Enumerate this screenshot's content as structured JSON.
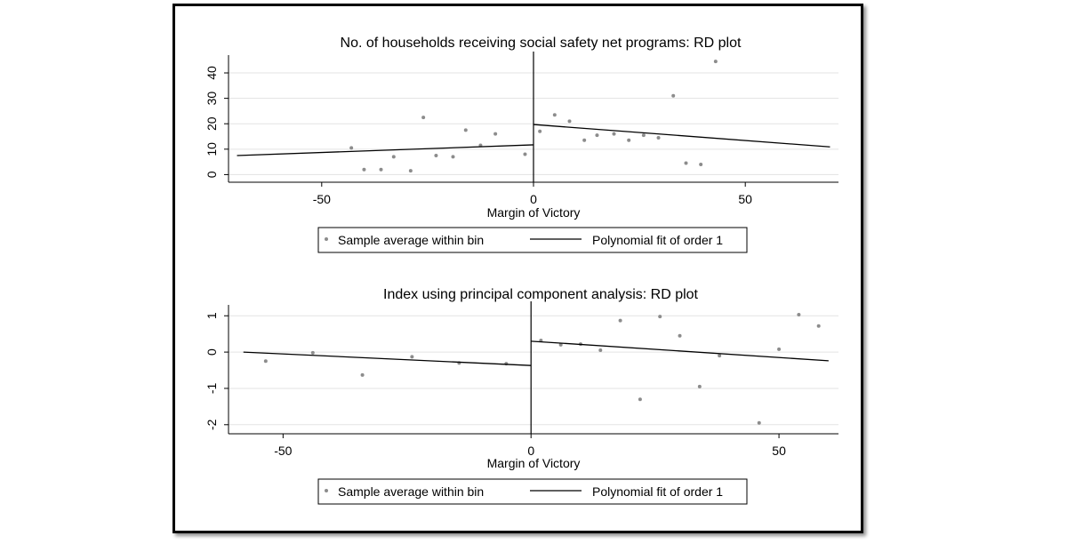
{
  "chart_data": [
    {
      "type": "scatter",
      "title": "No. of households receiving social safety net programs: RD plot",
      "xlabel": "Margin of Victory",
      "ylabel": "",
      "xlim": [
        -72,
        72
      ],
      "ylim": [
        -3,
        47
      ],
      "xticks": [
        -50,
        0,
        50
      ],
      "yticks": [
        0,
        10,
        20,
        30,
        40
      ],
      "grid": true,
      "cutoff": 0,
      "legend": {
        "placement": "bottom",
        "entries": [
          "Sample average within bin",
          "Polynomial fit of order 1"
        ]
      },
      "series": [
        {
          "name": "Sample average within bin",
          "points": [
            [
              -43,
              10.5
            ],
            [
              -40,
              2
            ],
            [
              -36,
              2
            ],
            [
              -33,
              7
            ],
            [
              -29,
              1.5
            ],
            [
              -26,
              22.5
            ],
            [
              -23,
              7.5
            ],
            [
              -19,
              7
            ],
            [
              -16,
              17.5
            ],
            [
              -12.5,
              11.5
            ],
            [
              -9,
              16
            ],
            [
              -2,
              8
            ],
            [
              1.5,
              17
            ],
            [
              5,
              23.5
            ],
            [
              8.5,
              21
            ],
            [
              12,
              13.5
            ],
            [
              15,
              15.5
            ],
            [
              19,
              16
            ],
            [
              22.5,
              13.5
            ],
            [
              26,
              15.5
            ],
            [
              29.5,
              14.5
            ],
            [
              33,
              31
            ],
            [
              36,
              4.5
            ],
            [
              39.5,
              4
            ],
            [
              43,
              44.5
            ]
          ]
        },
        {
          "name": "Polynomial fit of order 1",
          "segments": [
            [
              [
                -70,
                7.5
              ],
              [
                0,
                11.7
              ]
            ],
            [
              [
                0,
                19.7
              ],
              [
                70,
                10.9
              ]
            ]
          ]
        }
      ]
    },
    {
      "type": "scatter",
      "title": "Index using principal component analysis: RD plot",
      "xlabel": "Margin of Victory",
      "ylabel": "",
      "xlim": [
        -61,
        62
      ],
      "ylim": [
        -2.25,
        1.3
      ],
      "xticks": [
        -50,
        0,
        50
      ],
      "yticks": [
        -2,
        -1,
        0,
        1
      ],
      "grid": true,
      "cutoff": 0,
      "legend": {
        "placement": "bottom",
        "entries": [
          "Sample average within bin",
          "Polynomial fit of order 1"
        ]
      },
      "series": [
        {
          "name": "Sample average within bin",
          "points": [
            [
              -53.5,
              -0.25
            ],
            [
              -44,
              -0.02
            ],
            [
              -34,
              -0.63
            ],
            [
              -24,
              -0.13
            ],
            [
              -14.5,
              -0.3
            ],
            [
              -5,
              -0.32
            ],
            [
              2,
              0.32
            ],
            [
              6,
              0.2
            ],
            [
              10,
              0.22
            ],
            [
              14,
              0.05
            ],
            [
              18,
              0.87
            ],
            [
              22,
              -1.3
            ],
            [
              26,
              0.98
            ],
            [
              30,
              0.45
            ],
            [
              34,
              -0.95
            ],
            [
              38,
              -0.1
            ],
            [
              46,
              -1.95
            ],
            [
              50,
              0.08
            ],
            [
              54,
              1.03
            ],
            [
              58,
              0.72
            ]
          ]
        },
        {
          "name": "Polynomial fit of order 1",
          "segments": [
            [
              [
                -58,
                0.0
              ],
              [
                0,
                -0.37
              ]
            ],
            [
              [
                0,
                0.3
              ],
              [
                60,
                -0.24
              ]
            ]
          ]
        }
      ]
    }
  ]
}
